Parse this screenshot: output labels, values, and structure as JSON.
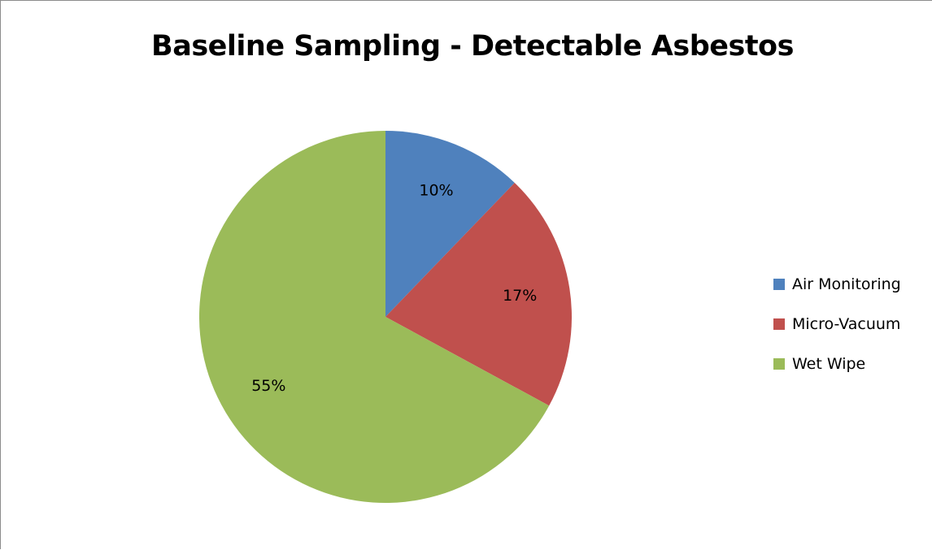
{
  "chart_data": {
    "type": "pie",
    "title": "Baseline Sampling - Detectable Asbestos",
    "categories": [
      "Air Monitoring",
      "Micro-Vacuum",
      "Wet Wipe"
    ],
    "values": [
      10,
      17,
      55
    ],
    "value_labels": [
      "10%",
      "17%",
      "55%"
    ],
    "colors": [
      "#4f81bd",
      "#c0504d",
      "#9bbb59"
    ],
    "legend_position": "right",
    "start_angle_note": "first slice begins at 12 o'clock, clockwise"
  }
}
